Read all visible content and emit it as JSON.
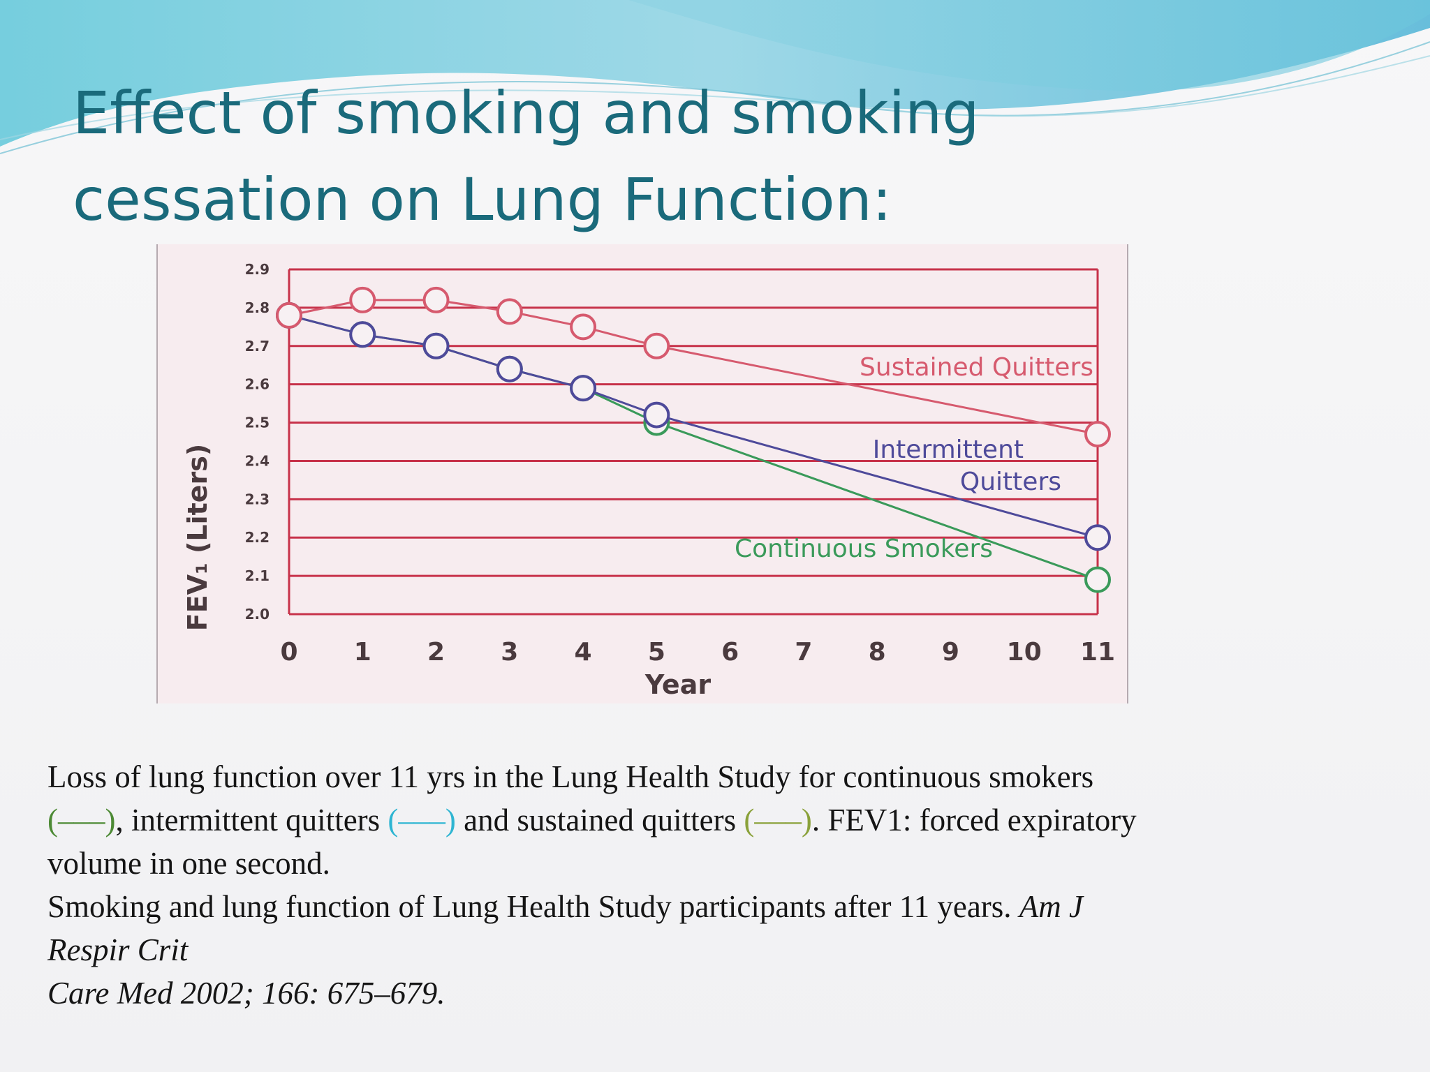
{
  "slide": {
    "title_line1": "Effect of smoking and smoking",
    "title_line2": "cessation on Lung Function:"
  },
  "colors": {
    "title": "#1a6a7b",
    "grid": "#c7324a",
    "plot_background": "#f7ecef",
    "sustained": "#d65a6e",
    "intermittent": "#4e4a9a",
    "continuous": "#3a9a5a"
  },
  "chart_data": {
    "type": "line",
    "xlabel": "Year",
    "ylabel": "FEV₁ (Liters)",
    "xlim": [
      0,
      11
    ],
    "ylim": [
      2.0,
      2.9
    ],
    "x_ticks": [
      "0",
      "1",
      "2",
      "3",
      "4",
      "5",
      "6",
      "7",
      "8",
      "9",
      "10",
      "11"
    ],
    "y_ticks": [
      "2.0",
      "2.1",
      "2.2",
      "2.3",
      "2.4",
      "2.5",
      "2.6",
      "2.7",
      "2.8",
      "2.9"
    ],
    "grid": "horizontal",
    "series": [
      {
        "name": "Sustained Quitters",
        "color": "#d65a6e",
        "x": [
          0,
          1,
          2,
          3,
          4,
          5,
          11
        ],
        "values": [
          2.78,
          2.82,
          2.82,
          2.79,
          2.75,
          2.7,
          2.47
        ],
        "label_lines": [
          "Sustained Quitters"
        ]
      },
      {
        "name": "Intermittent Quitters",
        "color": "#4e4a9a",
        "x": [
          0,
          1,
          2,
          3,
          4,
          5,
          11
        ],
        "values": [
          2.78,
          2.73,
          2.7,
          2.64,
          2.59,
          2.52,
          2.2
        ],
        "label_lines": [
          "Intermittent",
          "Quitters"
        ]
      },
      {
        "name": "Continuous Smokers",
        "color": "#3a9a5a",
        "x": [
          0,
          1,
          2,
          3,
          4,
          5,
          11
        ],
        "values": [
          2.78,
          2.73,
          2.7,
          2.64,
          2.59,
          2.5,
          2.09
        ],
        "label_lines": [
          "Continuous Smokers"
        ]
      }
    ]
  },
  "caption": {
    "line1": "Loss of lung function over 11 yrs in the Lung Health Study for continuous smokers",
    "dash_green": "(–––)",
    "mid1": ", intermittent quitters ",
    "dash_cyan": "(–––)",
    "mid2": " and sustained quitters ",
    "dash_olive": "(–––)",
    "end2": ". FEV1: forced expiratory",
    "line3": "volume in one second.",
    "citation_plain": "Smoking and lung function of Lung Health Study participants after 11 years. ",
    "citation_journal_a": "Am J",
    "citation_journal_b": "Respir Crit",
    "citation_journal_c": "Care Med 2002; 166: 675–679."
  }
}
